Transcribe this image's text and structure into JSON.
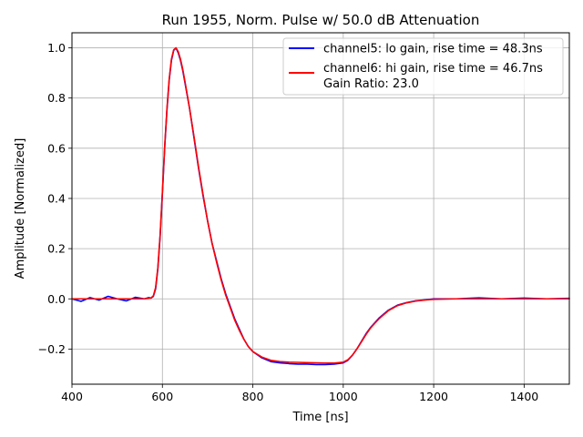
{
  "chart_data": {
    "type": "line",
    "title": "Run 1955, Norm. Pulse w/ 50.0 dB Attenuation",
    "xlabel": "Time [ns]",
    "ylabel": "Amplitude [Normalized]",
    "xlim": [
      400,
      1500
    ],
    "ylim": [
      -0.34,
      1.06
    ],
    "grid": true,
    "legend_position": "top-right",
    "x_ticks": [
      400,
      600,
      800,
      1000,
      1200,
      1400
    ],
    "x_tick_labels": [
      "400",
      "600",
      "800",
      "1000",
      "1200",
      "1400"
    ],
    "y_ticks": [
      -0.2,
      0.0,
      0.2,
      0.4,
      0.6,
      0.8,
      1.0
    ],
    "y_tick_labels": [
      "−0.2",
      "0.0",
      "0.2",
      "0.4",
      "0.6",
      "0.8",
      "1.0"
    ],
    "annotation": "Gain Ratio: 23.0",
    "series": [
      {
        "name": "channel5: lo gain, rise time = 48.3ns",
        "color": "#0000ff",
        "x": [
          400,
          420,
          440,
          460,
          480,
          500,
          520,
          540,
          560,
          570,
          575,
          580,
          585,
          590,
          595,
          600,
          605,
          610,
          615,
          620,
          625,
          630,
          635,
          640,
          645,
          650,
          660,
          670,
          680,
          690,
          700,
          710,
          720,
          730,
          740,
          750,
          760,
          770,
          780,
          790,
          800,
          820,
          840,
          860,
          880,
          900,
          920,
          940,
          960,
          980,
          1000,
          1010,
          1020,
          1030,
          1040,
          1050,
          1060,
          1070,
          1080,
          1090,
          1100,
          1120,
          1140,
          1160,
          1180,
          1200,
          1250,
          1300,
          1350,
          1400,
          1450,
          1500
        ],
        "values": [
          0.0,
          -0.01,
          0.005,
          -0.005,
          0.01,
          0.0,
          -0.008,
          0.006,
          0.0,
          0.005,
          0.003,
          0.01,
          0.04,
          0.12,
          0.25,
          0.42,
          0.6,
          0.75,
          0.87,
          0.95,
          0.99,
          1.0,
          0.98,
          0.95,
          0.91,
          0.86,
          0.76,
          0.64,
          0.52,
          0.41,
          0.31,
          0.22,
          0.15,
          0.08,
          0.02,
          -0.03,
          -0.08,
          -0.12,
          -0.16,
          -0.19,
          -0.21,
          -0.235,
          -0.25,
          -0.255,
          -0.258,
          -0.26,
          -0.26,
          -0.262,
          -0.262,
          -0.26,
          -0.255,
          -0.245,
          -0.225,
          -0.2,
          -0.17,
          -0.14,
          -0.115,
          -0.095,
          -0.075,
          -0.06,
          -0.045,
          -0.025,
          -0.015,
          -0.008,
          -0.004,
          0.0,
          0.0,
          0.004,
          0.0,
          0.003,
          0.0,
          0.002
        ]
      },
      {
        "name": "channel6: hi gain, rise time = 46.7ns",
        "color": "#ff0000",
        "x": [
          400,
          420,
          440,
          460,
          480,
          500,
          520,
          540,
          560,
          570,
          575,
          580,
          585,
          590,
          595,
          600,
          605,
          610,
          615,
          620,
          625,
          630,
          635,
          640,
          645,
          650,
          660,
          670,
          680,
          690,
          700,
          710,
          720,
          730,
          740,
          750,
          760,
          770,
          780,
          790,
          800,
          820,
          840,
          860,
          880,
          900,
          920,
          940,
          960,
          980,
          1000,
          1010,
          1020,
          1030,
          1040,
          1050,
          1060,
          1070,
          1080,
          1090,
          1100,
          1120,
          1140,
          1160,
          1180,
          1200,
          1250,
          1300,
          1350,
          1400,
          1450,
          1500
        ],
        "values": [
          0.0,
          0.0,
          0.0,
          0.0,
          0.0,
          0.0,
          0.0,
          0.0,
          0.0,
          0.002,
          0.004,
          0.012,
          0.045,
          0.125,
          0.255,
          0.425,
          0.605,
          0.755,
          0.875,
          0.955,
          0.992,
          1.0,
          0.985,
          0.955,
          0.915,
          0.865,
          0.76,
          0.645,
          0.525,
          0.415,
          0.31,
          0.22,
          0.145,
          0.075,
          0.015,
          -0.035,
          -0.085,
          -0.125,
          -0.16,
          -0.19,
          -0.21,
          -0.232,
          -0.245,
          -0.25,
          -0.252,
          -0.253,
          -0.254,
          -0.255,
          -0.256,
          -0.256,
          -0.252,
          -0.243,
          -0.225,
          -0.2,
          -0.172,
          -0.143,
          -0.117,
          -0.097,
          -0.078,
          -0.062,
          -0.047,
          -0.027,
          -0.016,
          -0.009,
          -0.005,
          -0.002,
          0.0,
          0.0,
          0.0,
          0.0,
          0.0,
          0.0
        ]
      }
    ]
  }
}
